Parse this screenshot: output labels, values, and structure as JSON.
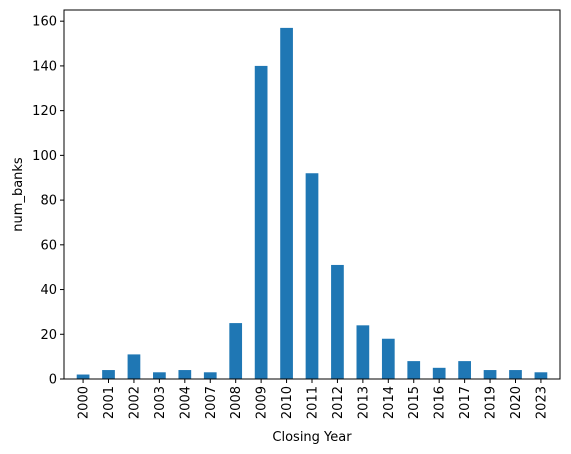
{
  "chart_data": {
    "type": "bar",
    "title": "",
    "xlabel": "Closing Year",
    "ylabel": "num_banks",
    "categories": [
      "2000",
      "2001",
      "2002",
      "2003",
      "2004",
      "2007",
      "2008",
      "2009",
      "2010",
      "2011",
      "2012",
      "2013",
      "2014",
      "2015",
      "2016",
      "2017",
      "2019",
      "2020",
      "2023"
    ],
    "values": [
      2,
      4,
      11,
      3,
      4,
      3,
      25,
      140,
      157,
      92,
      51,
      24,
      18,
      8,
      5,
      8,
      4,
      4,
      3
    ],
    "ylim": [
      0,
      165
    ],
    "yticks": [
      0,
      20,
      40,
      60,
      80,
      100,
      120,
      140,
      160
    ],
    "bar_color": "#1f77b4",
    "grid": false,
    "legend": "none"
  }
}
